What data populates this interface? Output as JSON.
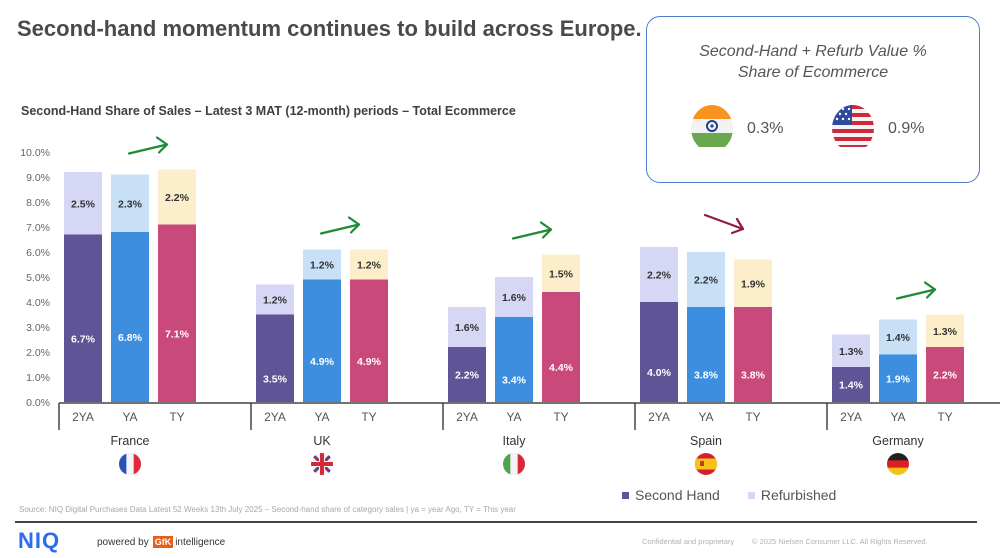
{
  "header": {
    "title": "Second-hand momentum continues to build across Europe."
  },
  "info_box": {
    "title_line1": "Second-Hand + Refurb Value %",
    "title_line2": "Share of Ecommerce",
    "items": [
      {
        "country": "India",
        "flag_icon": "india-flag-icon",
        "value": "0.3%"
      },
      {
        "country": "USA",
        "flag_icon": "usa-flag-icon",
        "value": "0.9%"
      }
    ]
  },
  "chart_data": {
    "type": "bar",
    "stacked": true,
    "title": "Second-Hand Share of Sales – Latest 3 MAT (12-month) periods – Total Ecommerce",
    "xlabel": "",
    "ylabel": "",
    "ylim": [
      0,
      10
    ],
    "yticks": [
      "0.0%",
      "1.0%",
      "2.0%",
      "3.0%",
      "4.0%",
      "5.0%",
      "6.0%",
      "7.0%",
      "8.0%",
      "9.0%",
      "10.0%"
    ],
    "grid": false,
    "periods": [
      "2YA",
      "YA",
      "TY"
    ],
    "groups": [
      {
        "country": "France",
        "flag_icon": "france-flag-icon",
        "trend": "up",
        "second_hand": [
          6.7,
          6.8,
          7.1
        ],
        "refurbished": [
          2.5,
          2.3,
          2.2
        ],
        "second_hand_labels": [
          "6.7%",
          "6.8%",
          "7.1%"
        ],
        "refurbished_labels": [
          "2.5%",
          "2.3%",
          "2.2%"
        ]
      },
      {
        "country": "UK",
        "flag_icon": "uk-flag-icon",
        "trend": "up",
        "second_hand": [
          3.5,
          4.9,
          4.9
        ],
        "refurbished": [
          1.2,
          1.2,
          1.2
        ],
        "second_hand_labels": [
          "3.5%",
          "4.9%",
          "4.9%"
        ],
        "refurbished_labels": [
          "1.2%",
          "1.2%",
          "1.2%"
        ]
      },
      {
        "country": "Italy",
        "flag_icon": "italy-flag-icon",
        "trend": "up",
        "second_hand": [
          2.2,
          3.4,
          4.4
        ],
        "refurbished": [
          1.6,
          1.6,
          1.5
        ],
        "second_hand_labels": [
          "2.2%",
          "3.4%",
          "4.4%"
        ],
        "refurbished_labels": [
          "1.6%",
          "1.6%",
          "1.5%"
        ]
      },
      {
        "country": "Spain",
        "flag_icon": "spain-flag-icon",
        "trend": "down",
        "second_hand": [
          4.0,
          3.8,
          3.8
        ],
        "refurbished": [
          2.2,
          2.2,
          1.9
        ],
        "second_hand_labels": [
          "4.0%",
          "3.8%",
          "3.8%"
        ],
        "refurbished_labels": [
          "2.2%",
          "2.2%",
          "1.9%"
        ]
      },
      {
        "country": "Germany",
        "flag_icon": "germany-flag-icon",
        "trend": "up",
        "second_hand": [
          1.4,
          1.9,
          2.2
        ],
        "refurbished": [
          1.3,
          1.4,
          1.3
        ],
        "second_hand_labels": [
          "1.4%",
          "1.9%",
          "2.2%"
        ],
        "refurbished_labels": [
          "1.3%",
          "1.4%",
          "1.3%"
        ]
      }
    ],
    "legend": [
      {
        "name": "Second Hand",
        "color": "#5f5495"
      },
      {
        "name": "Refurbished",
        "color": "#d6d6f5"
      }
    ],
    "legend_position": "bottom-right",
    "colors": {
      "second_hand": {
        "2YA": "#5f5495",
        "YA": "#3e8ee0",
        "TY": "#c9497a"
      },
      "refurbished": {
        "2YA": "#d6d6f5",
        "YA": "#c7e0f5",
        "TY": "#fdeecb"
      },
      "italy_ya_refurbished": "#d6d6f5",
      "trend_up": "#1e8a34",
      "trend_down": "#8e1b45"
    }
  },
  "footer": {
    "source": "Source: NIQ Digital Purchases Data Latest 52 Weeks 13th July 2025 – Second-hand share of category sales | ya = year Ago, TY = This year",
    "logo": "NIQ",
    "powered_by": "powered by",
    "gfk": "GfK",
    "intelligence": "intelligence",
    "confidential": "Confidential and proprietary",
    "copyright": "© 2025 Nielsen Consumer LLC. All Rights Reserved."
  }
}
